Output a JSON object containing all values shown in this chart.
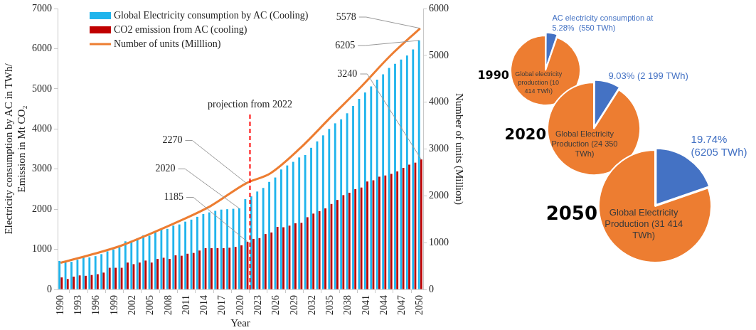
{
  "chart_data": [
    {
      "type": "bar",
      "xlabel": "Year",
      "ylabel": "Electricity consumption by AC in TWh/ Emission in Mt CO₂",
      "y2label": "Number of units (Million)",
      "x": [
        1990,
        1991,
        1992,
        1993,
        1994,
        1995,
        1996,
        1997,
        1998,
        1999,
        2000,
        2001,
        2002,
        2003,
        2004,
        2005,
        2006,
        2007,
        2008,
        2009,
        2010,
        2011,
        2012,
        2013,
        2014,
        2015,
        2016,
        2017,
        2018,
        2019,
        2020,
        2021,
        2022,
        2023,
        2024,
        2025,
        2026,
        2027,
        2028,
        2029,
        2030,
        2031,
        2032,
        2033,
        2034,
        2035,
        2036,
        2037,
        2038,
        2039,
        2040,
        2041,
        2042,
        2043,
        2044,
        2045,
        2046,
        2047,
        2048,
        2049,
        2050
      ],
      "series": [
        {
          "name": "Global Electricity consumption by AC (Cooling)",
          "color": "#1fb4ec",
          "values": [
            710,
            700,
            690,
            740,
            800,
            800,
            830,
            880,
            950,
            1000,
            1050,
            1200,
            1210,
            1270,
            1350,
            1340,
            1430,
            1500,
            1510,
            1590,
            1620,
            1690,
            1740,
            1810,
            1880,
            1920,
            1960,
            1990,
            2000,
            2010,
            2020,
            2250,
            2320,
            2440,
            2530,
            2680,
            2790,
            2990,
            3090,
            3180,
            3290,
            3350,
            3530,
            3690,
            3840,
            4000,
            4140,
            4240,
            4390,
            4570,
            4750,
            4910,
            5060,
            5230,
            5360,
            5520,
            5620,
            5730,
            5830,
            5980,
            6205
          ],
          "value_labels": [
            null,
            null,
            null,
            null,
            null,
            null,
            null,
            null,
            null,
            null,
            null,
            null,
            null,
            null,
            null,
            null,
            null,
            null,
            null,
            null,
            null,
            null,
            null,
            null,
            null,
            null,
            null,
            null,
            null,
            null,
            "2020",
            null,
            null,
            null,
            null,
            null,
            null,
            null,
            null,
            null,
            null,
            null,
            null,
            null,
            null,
            null,
            null,
            null,
            null,
            null,
            null,
            null,
            null,
            null,
            null,
            null,
            null,
            null,
            null,
            null,
            "6205"
          ]
        },
        {
          "name": "CO2 emission from AC (cooling)",
          "color": "#c00000",
          "values": [
            300,
            260,
            320,
            350,
            340,
            360,
            380,
            420,
            540,
            540,
            540,
            670,
            630,
            670,
            720,
            670,
            760,
            790,
            760,
            850,
            840,
            890,
            910,
            970,
            1030,
            1030,
            1030,
            1030,
            1040,
            1060,
            1100,
            1185,
            1260,
            1280,
            1380,
            1420,
            1560,
            1550,
            1590,
            1650,
            1660,
            1800,
            1890,
            1950,
            2020,
            2130,
            2230,
            2350,
            2410,
            2500,
            2540,
            2690,
            2720,
            2810,
            2840,
            2880,
            2940,
            3030,
            3110,
            3160,
            3240
          ],
          "value_labels": [
            null,
            null,
            null,
            null,
            null,
            null,
            null,
            null,
            null,
            null,
            null,
            null,
            null,
            null,
            null,
            null,
            null,
            null,
            null,
            null,
            null,
            null,
            null,
            null,
            null,
            null,
            null,
            null,
            null,
            null,
            null,
            "1185",
            null,
            null,
            null,
            null,
            null,
            null,
            null,
            null,
            null,
            null,
            null,
            null,
            null,
            null,
            null,
            null,
            null,
            null,
            null,
            null,
            null,
            null,
            null,
            null,
            null,
            null,
            null,
            null,
            "3240"
          ]
        },
        {
          "name": "Number of units (Milllion)",
          "type": "line",
          "axis": "y2",
          "color": "#ed7d31",
          "x": [
            1990,
            1995,
            2000,
            2005,
            2010,
            2015,
            2021,
            2025,
            2030,
            2035,
            2040,
            2045,
            2050
          ],
          "values": [
            570,
            740,
            930,
            1190,
            1470,
            1780,
            2270,
            2480,
            3020,
            3670,
            4310,
            4990,
            5578
          ],
          "value_labels": [
            null,
            null,
            null,
            null,
            null,
            null,
            "2270",
            null,
            null,
            null,
            null,
            null,
            "5578"
          ]
        }
      ],
      "xlim": [
        1989.5,
        2050.5
      ],
      "xticks": [
        1990,
        1993,
        1996,
        1999,
        2002,
        2005,
        2008,
        2011,
        2014,
        2017,
        2020,
        2023,
        2026,
        2029,
        2032,
        2035,
        2038,
        2041,
        2044,
        2047,
        2050
      ],
      "ylim": [
        0,
        7000
      ],
      "yticks": [
        0,
        1000,
        2000,
        3000,
        4000,
        5000,
        6000,
        7000
      ],
      "y2lim": [
        0,
        6000
      ],
      "y2ticks": [
        0,
        1000,
        2000,
        3000,
        4000,
        5000,
        6000
      ],
      "ref_lines": [
        {
          "axis": "x",
          "value": 2021.6,
          "label": "projection from 2022",
          "color": "#ff0000",
          "line_style": "dashed"
        }
      ],
      "grid": false,
      "legend": "top left"
    },
    {
      "type": "pie",
      "title": "1990",
      "categories": [
        "AC electricity consumption at",
        "Global electricity production (10 414 TWh)"
      ],
      "values": [
        5.28,
        94.72
      ],
      "colors": [
        "#4472c4",
        "#ed7d31"
      ],
      "value_labels": [
        "5.28%  (550 TWh)",
        null
      ]
    },
    {
      "type": "pie",
      "title": "2020",
      "categories": [
        null,
        "Global Electricity Production (24 350 TWh)"
      ],
      "values": [
        9.03,
        90.97
      ],
      "colors": [
        "#4472c4",
        "#ed7d31"
      ],
      "value_labels": [
        "9.03% (2 199 TWh)",
        null
      ]
    },
    {
      "type": "pie",
      "title": "2050",
      "categories": [
        null,
        "Global Electricity Production (31 414 TWh)"
      ],
      "values": [
        19.74,
        80.26
      ],
      "colors": [
        "#4472c4",
        "#ed7d31"
      ],
      "value_labels": [
        "19.74% (6205 TWh)",
        null
      ]
    }
  ]
}
